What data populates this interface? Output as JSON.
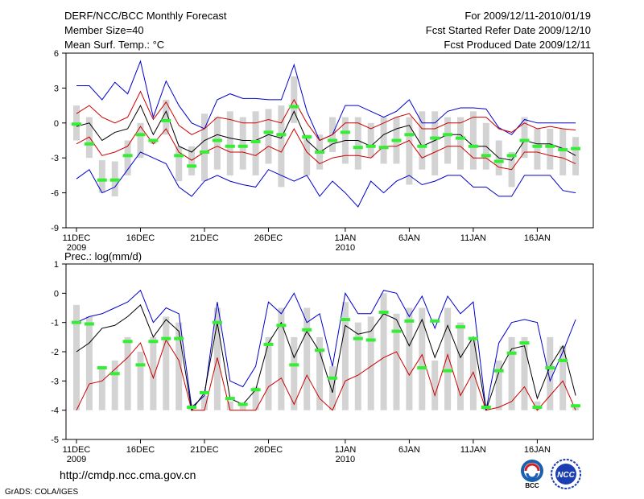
{
  "header": {
    "title": "DERF/NCC/BCC Monthly Forecast",
    "member_size": "Member Size=40",
    "variable": "Mean Surf. Temp.: °C",
    "for_range": "For 2009/12/11-2010/01/19",
    "started_refer": "Fcst Started Refer Date 2009/12/10",
    "produced": "Fcst Produced Date 2009/12/11"
  },
  "footer": {
    "url": "http://cmdp.ncc.cma.gov.cn",
    "grads": "GrADS: COLA/IGES",
    "logo_bcc": "BCC",
    "logo_ncc": "NCC"
  },
  "colors": {
    "max_line": "#0000cc",
    "min_line": "#cc0000",
    "mean_line": "#000000",
    "box": "#d3d3d3",
    "median": "#33ee33"
  },
  "x_ticks": [
    {
      "day": 0,
      "label": "11DEC",
      "sub": "2009"
    },
    {
      "day": 5,
      "label": "16DEC",
      "sub": ""
    },
    {
      "day": 10,
      "label": "21DEC",
      "sub": ""
    },
    {
      "day": 15,
      "label": "26DEC",
      "sub": ""
    },
    {
      "day": 21,
      "label": "1JAN",
      "sub": "2010"
    },
    {
      "day": 26,
      "label": "6JAN",
      "sub": ""
    },
    {
      "day": 31,
      "label": "11JAN",
      "sub": ""
    },
    {
      "day": 36,
      "label": "16JAN",
      "sub": ""
    }
  ],
  "chart_data": [
    {
      "type": "box-ensemble",
      "title": "Mean Surf. Temp.: °C",
      "ylabel": "",
      "ylim": [
        -9,
        6
      ],
      "yticks": [
        -9,
        -6,
        -3,
        0,
        3,
        6
      ],
      "days": 40,
      "max": [
        3.2,
        3.2,
        2,
        3.5,
        2.5,
        5.3,
        0.5,
        3.6,
        1.5,
        0,
        -0.5,
        2,
        2.5,
        2.1,
        2.1,
        2,
        2,
        5,
        1,
        -1.5,
        -1,
        1.5,
        1.5,
        1,
        0.5,
        1,
        2,
        0,
        0,
        1,
        1.3,
        1.3,
        1.2,
        -0.4,
        -1,
        0.3,
        0,
        0,
        0,
        0
      ],
      "upper": [
        0.8,
        1.5,
        0.5,
        0,
        0.5,
        2.7,
        0.3,
        1.8,
        -0.2,
        -1,
        -0.5,
        0.5,
        0.3,
        0,
        0,
        0.3,
        0,
        2,
        0,
        -1.5,
        -1,
        0,
        0,
        -0.5,
        0,
        0.5,
        0.8,
        -0.5,
        -0.5,
        0,
        0,
        0.5,
        0.5,
        -0.5,
        -0.8,
        0,
        -0.5,
        -0.3,
        -0.5,
        -0.6
      ],
      "mean": [
        -0.3,
        0,
        -1.5,
        -0.8,
        -0.5,
        1.5,
        -1,
        1,
        -2,
        -2.5,
        -1.5,
        -1,
        -1.3,
        -1.5,
        -1.5,
        -1,
        -1.3,
        1,
        -1.5,
        -2.5,
        -1.8,
        -1.5,
        -1.5,
        -2,
        -1,
        -0.5,
        -0.2,
        -2,
        -1.5,
        -1,
        -1,
        -2,
        -2,
        -3,
        -3.2,
        -1.5,
        -1.8,
        -1.8,
        -2.2,
        -2.8
      ],
      "lower": [
        -1.8,
        -1.2,
        -2.8,
        -2.5,
        -2,
        -0.3,
        -1.8,
        -0.5,
        -2.5,
        -3.2,
        -2.5,
        -2,
        -2.5,
        -2.5,
        -2.8,
        -2,
        -2.5,
        -0.5,
        -2.5,
        -3.5,
        -3,
        -2.8,
        -2.8,
        -3,
        -2,
        -2,
        -1.5,
        -3,
        -2.5,
        -2,
        -2,
        -3,
        -3,
        -3.8,
        -4,
        -2.5,
        -2.5,
        -2.8,
        -3,
        -3.5
      ],
      "min": [
        -4.8,
        -4,
        -6,
        -5.5,
        -4,
        -2.5,
        -3,
        -3.5,
        -5.5,
        -6.3,
        -5,
        -4.5,
        -5,
        -5.3,
        -5.5,
        -4,
        -4.5,
        -5,
        -4.5,
        -6.3,
        -5,
        -6,
        -7.2,
        -5,
        -6,
        -5,
        -4.5,
        -5.3,
        -5,
        -4.5,
        -4.5,
        -5.5,
        -5.5,
        -6.3,
        -6.3,
        -4.5,
        -4.5,
        -4.5,
        -5.8,
        -6
      ],
      "box_hi": [
        1.5,
        0.5,
        -3.2,
        -3.3,
        -1.5,
        0,
        -1.5,
        2,
        -2,
        -2,
        0.8,
        0.5,
        1,
        0.5,
        1,
        1.2,
        1.5,
        4,
        -1,
        -1,
        0.5,
        0.5,
        0.5,
        0,
        0.5,
        0.5,
        0.5,
        1,
        1,
        0.5,
        0.5,
        1,
        0,
        -1.5,
        -2.5,
        0.5,
        -0.5,
        -0.5,
        -0.5,
        -1.2
      ],
      "box_lo": [
        -1.5,
        -3,
        -6,
        -6.3,
        -4.5,
        -3,
        -1.8,
        -1,
        -5,
        -4.5,
        -5,
        -4,
        -4.5,
        -4,
        -4.5,
        -3.5,
        -5.5,
        0,
        -4.5,
        -4,
        -2.5,
        -3.5,
        -4,
        -3,
        -3.5,
        -3.5,
        -5.3,
        -4,
        -4.5,
        -3.5,
        -4,
        -4,
        -4,
        -4.5,
        -5.5,
        -3,
        -4,
        -4,
        -4.5,
        -4.5
      ],
      "median": [
        -0.1,
        -1.8,
        -4.9,
        -4.9,
        -2.8,
        -1,
        -1.5,
        0.2,
        -2.8,
        -3.7,
        -2.5,
        -1.5,
        -2,
        -2,
        -1.6,
        -0.8,
        -1,
        1.4,
        -1.2,
        -2.5,
        -1.5,
        -0.8,
        -2.1,
        -2,
        -2.1,
        -1.5,
        -1,
        -2,
        -1.3,
        -1,
        -1.3,
        -2,
        -2.8,
        -3.3,
        -2.8,
        -1.5,
        -2,
        -2,
        -2.3,
        -2.2
      ]
    },
    {
      "type": "box-ensemble",
      "title": "Prec.: log(mm/d)",
      "ylabel": "",
      "ylim": [
        -5,
        1
      ],
      "yticks": [
        -5,
        -4,
        -3,
        -2,
        -1,
        0,
        1
      ],
      "days": 40,
      "max": [
        -1,
        -0.8,
        -0.7,
        -0.5,
        -0.3,
        0.1,
        -1,
        -0.5,
        -0.7,
        -3.9,
        -3.5,
        -0.3,
        -3,
        -3.2,
        -2.5,
        -0.3,
        -0.7,
        0,
        -1,
        -0.7,
        -2.5,
        0,
        -0.7,
        -0.7,
        0.1,
        0,
        -0.8,
        -0.1,
        -1.2,
        -0.1,
        -0.7,
        -0.3,
        -4,
        -1.7,
        -1,
        -0.9,
        -1,
        -3,
        -2,
        -0.9
      ],
      "mean": [
        -2,
        -1.7,
        -1.2,
        -1.1,
        -0.8,
        -0.4,
        -1.5,
        -0.9,
        -1.3,
        -4,
        -3.4,
        -1,
        -3.6,
        -3.8,
        -3.3,
        -1.7,
        -1,
        -2.2,
        -1.3,
        -2,
        -3.4,
        -1.1,
        -1.4,
        -1.3,
        -0.7,
        -0.9,
        -1.8,
        -0.9,
        -2.2,
        -1.1,
        -2.2,
        -1.5,
        -4,
        -2.7,
        -1.9,
        -1.8,
        -3.6,
        -2.5,
        -1.8,
        -3.5
      ],
      "min": [
        -4,
        -3.1,
        -3,
        -2.6,
        -2.2,
        -1.7,
        -2.9,
        -1.6,
        -2.3,
        -4,
        -4,
        -2.2,
        -4,
        -4,
        -4,
        -3.2,
        -2.9,
        -3.8,
        -2.8,
        -3.6,
        -4,
        -3,
        -2.8,
        -2.5,
        -2.2,
        -2,
        -2.8,
        -2.1,
        -3.5,
        -2.1,
        -3.5,
        -2.7,
        -4,
        -3.9,
        -3.7,
        -3.2,
        -4,
        -3.5,
        -3,
        -4
      ],
      "box_hi": [
        -0.4,
        -0.8,
        -2.5,
        -2.3,
        -1.5,
        -2,
        -1.5,
        -0.8,
        -1,
        -3.8,
        -3.5,
        -0.5,
        -3.7,
        -3.8,
        -3.2,
        -1.5,
        -0.5,
        -1.5,
        -0.5,
        -1.5,
        -2.5,
        -0.3,
        -1,
        -0.8,
        0,
        -0.7,
        -0.5,
        -0.5,
        -2.3,
        -0.5,
        -1,
        -1.5,
        -3.8,
        -2.3,
        -1.5,
        -1.5,
        -3.7,
        -1.5,
        -1.8,
        -3.8
      ],
      "box_lo": [
        -4,
        -4,
        -4,
        -4,
        -4,
        -4,
        -4,
        -4,
        -4,
        -4,
        -4,
        -4,
        -4,
        -4,
        -4,
        -4,
        -4,
        -4,
        -4,
        -4,
        -4,
        -4,
        -4,
        -4,
        -4,
        -4,
        -4,
        -4,
        -4,
        -4,
        -4,
        -4,
        -4,
        -4,
        -4,
        -4,
        -4,
        -4,
        -4,
        -4
      ],
      "median": [
        -1,
        -1.05,
        -2.55,
        -2.75,
        -1.65,
        -2.45,
        -1.65,
        -1.55,
        -1.55,
        -3.9,
        -3.4,
        -1,
        -3.6,
        -3.8,
        -3.3,
        -1.75,
        -1.1,
        -2.45,
        -1.25,
        -1.95,
        -2.9,
        -0.9,
        -1.55,
        -1.6,
        -0.65,
        -1.3,
        -0.95,
        -2.55,
        -0.95,
        -2.65,
        -1.15,
        -1.55,
        -3.9,
        -2.65,
        -2.05,
        -1.7,
        -3.9,
        -2.55,
        -2.3,
        -3.85
      ]
    }
  ]
}
